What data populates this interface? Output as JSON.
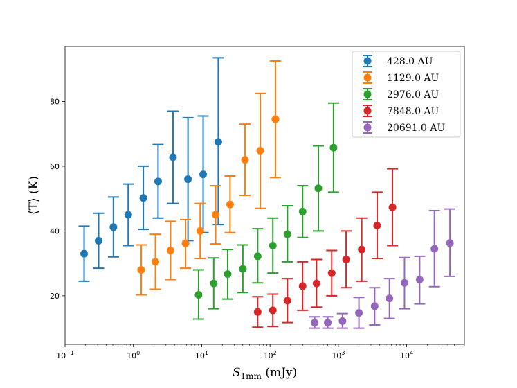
{
  "chart_data": {
    "type": "scatter",
    "title": "",
    "xlabel": "S_1mm (mJy)",
    "xlabel_main": "S",
    "xlabel_sub": "1mm",
    "xlabel_unit": " (mJy)",
    "ylabel": "⟨T⟩ (K)",
    "xscale": "log",
    "xlim": [
      0.1,
      70000
    ],
    "ylim": [
      5,
      97
    ],
    "xticks": [
      {
        "value": 0.1,
        "base": "10",
        "exp": "−1"
      },
      {
        "value": 1,
        "base": "10",
        "exp": "0"
      },
      {
        "value": 10,
        "base": "10",
        "exp": "1"
      },
      {
        "value": 100,
        "base": "10",
        "exp": "2"
      },
      {
        "value": 1000,
        "base": "10",
        "exp": "3"
      },
      {
        "value": 10000,
        "base": "10",
        "exp": "4"
      }
    ],
    "yticks": [
      {
        "value": 20,
        "label": "20"
      },
      {
        "value": 40,
        "label": "40"
      },
      {
        "value": 60,
        "label": "60"
      },
      {
        "value": 80,
        "label": "80"
      }
    ],
    "legend_position": "top-right",
    "series": [
      {
        "name": "428.0 AU",
        "color": "#1f77b4",
        "points": [
          {
            "x": 0.19,
            "y": 33.0,
            "lo": 24.5,
            "hi": 41.5
          },
          {
            "x": 0.31,
            "y": 37.0,
            "lo": 28.5,
            "hi": 45.5
          },
          {
            "x": 0.51,
            "y": 41.2,
            "lo": 32.0,
            "hi": 50.5
          },
          {
            "x": 0.84,
            "y": 45.0,
            "lo": 35.5,
            "hi": 54.5
          },
          {
            "x": 1.4,
            "y": 50.2,
            "lo": 40.5,
            "hi": 60.0
          },
          {
            "x": 2.3,
            "y": 55.3,
            "lo": 44.0,
            "hi": 66.7
          },
          {
            "x": 3.8,
            "y": 62.8,
            "lo": 48.5,
            "hi": 77.0
          },
          {
            "x": 6.3,
            "y": 56.0,
            "lo": 37.0,
            "hi": 75.0
          },
          {
            "x": 10.5,
            "y": 57.5,
            "lo": 39.5,
            "hi": 75.5
          },
          {
            "x": 17.5,
            "y": 67.5,
            "lo": 42.0,
            "hi": 93.5
          }
        ]
      },
      {
        "name": "1129.0 AU",
        "color": "#ff7f0e",
        "points": [
          {
            "x": 1.3,
            "y": 28.0,
            "lo": 20.3,
            "hi": 35.7
          },
          {
            "x": 2.1,
            "y": 30.5,
            "lo": 22.0,
            "hi": 39.0
          },
          {
            "x": 3.5,
            "y": 34.0,
            "lo": 25.0,
            "hi": 43.0
          },
          {
            "x": 5.8,
            "y": 36.2,
            "lo": 28.5,
            "hi": 43.5
          },
          {
            "x": 9.5,
            "y": 40.0,
            "lo": 31.5,
            "hi": 48.5
          },
          {
            "x": 16,
            "y": 45.0,
            "lo": 36.0,
            "hi": 54.0
          },
          {
            "x": 26,
            "y": 48.2,
            "lo": 39.5,
            "hi": 57.0
          },
          {
            "x": 43,
            "y": 62.0,
            "lo": 51.0,
            "hi": 73.0
          },
          {
            "x": 72,
            "y": 64.8,
            "lo": 47.0,
            "hi": 82.5
          },
          {
            "x": 120,
            "y": 74.5,
            "lo": 56.5,
            "hi": 92.5
          }
        ]
      },
      {
        "name": "2976.0 AU",
        "color": "#2ca02c",
        "points": [
          {
            "x": 9,
            "y": 20.3,
            "lo": 12.8,
            "hi": 28.0
          },
          {
            "x": 15,
            "y": 23.8,
            "lo": 16.0,
            "hi": 31.7
          },
          {
            "x": 24,
            "y": 26.7,
            "lo": 19.0,
            "hi": 34.3
          },
          {
            "x": 40,
            "y": 28.3,
            "lo": 21.0,
            "hi": 35.7
          },
          {
            "x": 66,
            "y": 32.2,
            "lo": 24.0,
            "hi": 40.7
          },
          {
            "x": 110,
            "y": 35.5,
            "lo": 27.0,
            "hi": 44.0
          },
          {
            "x": 180,
            "y": 39.0,
            "lo": 30.5,
            "hi": 47.8
          },
          {
            "x": 300,
            "y": 46.0,
            "lo": 38.0,
            "hi": 54.0
          },
          {
            "x": 510,
            "y": 53.2,
            "lo": 40.0,
            "hi": 66.3
          },
          {
            "x": 850,
            "y": 65.7,
            "lo": 52.0,
            "hi": 79.5
          }
        ]
      },
      {
        "name": "7848.0 AU",
        "color": "#d62728",
        "points": [
          {
            "x": 66,
            "y": 15.0,
            "lo": 10.3,
            "hi": 19.7
          },
          {
            "x": 110,
            "y": 15.5,
            "lo": 10.5,
            "hi": 20.5
          },
          {
            "x": 180,
            "y": 18.5,
            "lo": 11.7,
            "hi": 25.3
          },
          {
            "x": 300,
            "y": 23.0,
            "lo": 15.5,
            "hi": 30.5
          },
          {
            "x": 480,
            "y": 23.8,
            "lo": 16.5,
            "hi": 31.2
          },
          {
            "x": 800,
            "y": 27.0,
            "lo": 20.0,
            "hi": 34.0
          },
          {
            "x": 1300,
            "y": 31.2,
            "lo": 22.5,
            "hi": 40.0
          },
          {
            "x": 2200,
            "y": 34.3,
            "lo": 24.5,
            "hi": 44.0
          },
          {
            "x": 3700,
            "y": 41.7,
            "lo": 31.5,
            "hi": 52.0
          },
          {
            "x": 6200,
            "y": 47.3,
            "lo": 35.5,
            "hi": 59.2
          }
        ]
      },
      {
        "name": "20691.0 AU",
        "color": "#9467bd",
        "points": [
          {
            "x": 450,
            "y": 11.7,
            "lo": 10.0,
            "hi": 13.5
          },
          {
            "x": 700,
            "y": 11.7,
            "lo": 10.0,
            "hi": 13.5
          },
          {
            "x": 1150,
            "y": 12.2,
            "lo": 10.0,
            "hi": 14.5
          },
          {
            "x": 2000,
            "y": 14.7,
            "lo": 10.0,
            "hi": 19.5
          },
          {
            "x": 3400,
            "y": 16.8,
            "lo": 11.0,
            "hi": 22.5
          },
          {
            "x": 5600,
            "y": 19.2,
            "lo": 13.0,
            "hi": 25.3
          },
          {
            "x": 9300,
            "y": 24.0,
            "lo": 16.0,
            "hi": 31.8
          },
          {
            "x": 15500,
            "y": 25.0,
            "lo": 17.5,
            "hi": 32.2
          },
          {
            "x": 25500,
            "y": 34.5,
            "lo": 22.8,
            "hi": 46.3
          },
          {
            "x": 43000,
            "y": 36.3,
            "lo": 26.0,
            "hi": 46.8
          }
        ]
      }
    ]
  }
}
